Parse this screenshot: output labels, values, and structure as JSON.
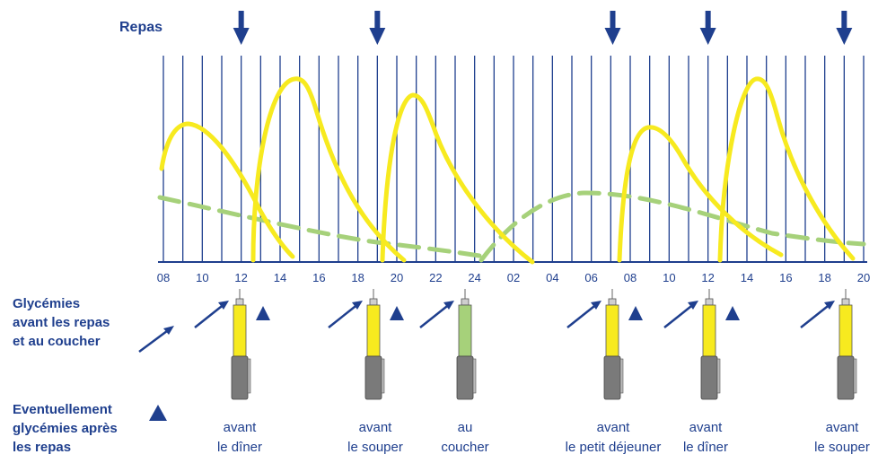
{
  "colors": {
    "blue": "#1f3f8e",
    "yellow": "#f7ea1f",
    "green": "#a6d17a",
    "grey": "#7a7a7a"
  },
  "header": {
    "meals_label": "Repas"
  },
  "axis": {
    "ticks": [
      "08",
      "10",
      "12",
      "14",
      "16",
      "18",
      "20",
      "22",
      "24",
      "02",
      "04",
      "06",
      "08",
      "10",
      "12",
      "14",
      "16",
      "18",
      "20"
    ]
  },
  "legend": {
    "before_meals": {
      "line1": "Glycémies",
      "line2": "avant les repas",
      "line3": "et au coucher"
    },
    "after_meals": {
      "line1": "Eventuellement",
      "line2": "glycémies après",
      "line3": "les repas"
    }
  },
  "injections": [
    {
      "line1": "avant",
      "line2": "le dîner",
      "pen": "yellow-pen-icon",
      "after_marker": true
    },
    {
      "line1": "avant",
      "line2": "le souper",
      "pen": "yellow-pen-icon",
      "after_marker": true
    },
    {
      "line1": "au",
      "line2": "coucher",
      "pen": "green-pen-icon",
      "after_marker": false
    },
    {
      "line1": "avant",
      "line2": "le petit déjeuner",
      "pen": "yellow-pen-icon",
      "after_marker": true
    },
    {
      "line1": "avant",
      "line2": "le dîner",
      "pen": "yellow-pen-icon",
      "after_marker": true
    },
    {
      "line1": "avant",
      "line2": "le souper",
      "pen": "yellow-pen-icon",
      "after_marker": false
    }
  ],
  "meal_arrows": [
    "arrow-down-icon",
    "arrow-down-icon",
    "arrow-down-icon",
    "arrow-down-icon",
    "arrow-down-icon"
  ]
}
